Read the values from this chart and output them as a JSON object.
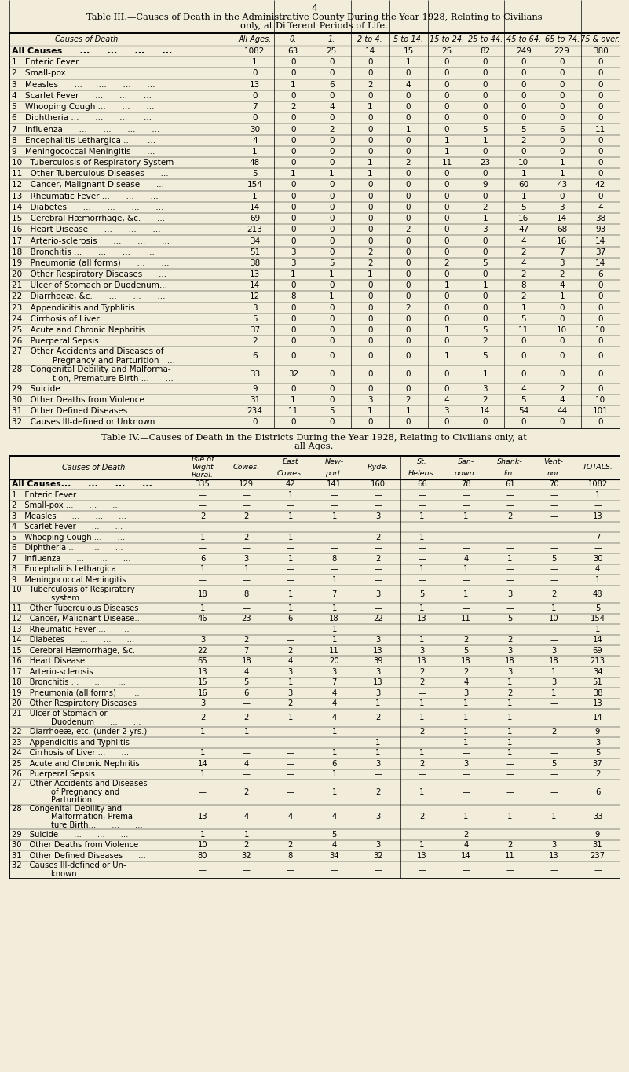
{
  "page_number": "4",
  "bg_color": "#f2edda",
  "table3_title_line1": "Table III.—Causes of Death in the Administrative County During the Year 1928, Relating to Civilians",
  "table3_title_line2": "only, at Different Periods of Life.",
  "table3_col_headers": [
    "Causes of Death.",
    "All Ages.",
    "0.",
    "1.",
    "2 to 4.",
    "5 to 14.",
    "15 to 24.",
    "25 to 44.",
    "45 to 64.",
    "65 to 74.",
    "75 & over."
  ],
  "table3_rows": [
    [
      "All Causes  ...  ...  ...  ...",
      "1082",
      "63",
      "25",
      "14",
      "15",
      "25",
      "82",
      "249",
      "229",
      "380",
      false
    ],
    [
      "1 Enteric Fever  ...  ...  ...",
      "1",
      "0",
      "0",
      "0",
      "1",
      "0",
      "0",
      "0",
      "0",
      "0",
      false
    ],
    [
      "2 Small-pox ...  ...  ...  ...",
      "0",
      "0",
      "0",
      "0",
      "0",
      "0",
      "0",
      "0",
      "0",
      "0",
      false
    ],
    [
      "3 Measles  ...  ...  ...  ...",
      "13",
      "1",
      "6",
      "2",
      "4",
      "0",
      "0",
      "0",
      "0",
      "0",
      false
    ],
    [
      "4 Scarlet Fever  ...  ...  ...",
      "0",
      "0",
      "0",
      "0",
      "0",
      "0",
      "0",
      "0",
      "0",
      "0",
      false
    ],
    [
      "5 Whooping Cough ...  ...  ...",
      "7",
      "2",
      "4",
      "1",
      "0",
      "0",
      "0",
      "0",
      "0",
      "0",
      false
    ],
    [
      "6 Diphtheria ...  ...  ...  ...",
      "0",
      "0",
      "0",
      "0",
      "0",
      "0",
      "0",
      "0",
      "0",
      "0",
      false
    ],
    [
      "7 Influenza  ...  ...  ...  ...",
      "30",
      "0",
      "2",
      "0",
      "1",
      "0",
      "5",
      "5",
      "6",
      "11",
      false
    ],
    [
      "8 Encephalitis Lethargica ...  ...",
      "4",
      "0",
      "0",
      "0",
      "0",
      "1",
      "1",
      "2",
      "0",
      "0",
      false
    ],
    [
      "9 Meningococcal Meningitis  ...",
      "1",
      "0",
      "0",
      "0",
      "0",
      "1",
      "0",
      "0",
      "0",
      "0",
      false
    ],
    [
      "10 Tuberculosis of Respiratory System",
      "48",
      "0",
      "0",
      "1",
      "2",
      "11",
      "23",
      "10",
      "1",
      "0",
      false
    ],
    [
      "11 Other Tuberculous Diseases  ...",
      "5",
      "1",
      "1",
      "1",
      "0",
      "0",
      "0",
      "1",
      "1",
      "0",
      false
    ],
    [
      "12 Cancer, Malignant Disease  ...",
      "154",
      "0",
      "0",
      "0",
      "0",
      "0",
      "9",
      "60",
      "43",
      "42",
      false
    ],
    [
      "13 Rheumatic Fever ...  ...  ...",
      "1",
      "0",
      "0",
      "0",
      "0",
      "0",
      "0",
      "1",
      "0",
      "0",
      false
    ],
    [
      "14 Diabetes  ...  ...  ...  ...",
      "14",
      "0",
      "0",
      "0",
      "0",
      "0",
      "2",
      "5",
      "3",
      "4",
      false
    ],
    [
      "15 Cerebral Hæmorrhage, &c.  ...",
      "69",
      "0",
      "0",
      "0",
      "0",
      "0",
      "1",
      "16",
      "14",
      "38",
      false
    ],
    [
      "16 Heart Disease  ...  ...  ...",
      "213",
      "0",
      "0",
      "0",
      "2",
      "0",
      "3",
      "47",
      "68",
      "93",
      false
    ],
    [
      "17 Arterio-sclerosis  ...  ...  ...",
      "34",
      "0",
      "0",
      "0",
      "0",
      "0",
      "0",
      "4",
      "16",
      "14",
      false
    ],
    [
      "18 Bronchitis ...  ...  ...  ...",
      "51",
      "3",
      "0",
      "2",
      "0",
      "0",
      "0",
      "2",
      "7",
      "37",
      false
    ],
    [
      "19 Pneumonia (all forms)  ...  ...",
      "38",
      "3",
      "5",
      "2",
      "0",
      "2",
      "5",
      "4",
      "3",
      "14",
      false
    ],
    [
      "20 Other Respiratory Diseases  ...",
      "13",
      "1",
      "1",
      "1",
      "0",
      "0",
      "0",
      "2",
      "2",
      "6",
      false
    ],
    [
      "21 Ulcer of Stomach or Duodenum...",
      "14",
      "0",
      "0",
      "0",
      "0",
      "1",
      "1",
      "8",
      "4",
      "0",
      false
    ],
    [
      "22 Diarrhoeæ, &c.  ...  ...  ...",
      "12",
      "8",
      "1",
      "0",
      "0",
      "0",
      "0",
      "2",
      "1",
      "0",
      false
    ],
    [
      "23 Appendicitis and Typhlitis  ...",
      "3",
      "0",
      "0",
      "0",
      "2",
      "0",
      "0",
      "1",
      "0",
      "0",
      false
    ],
    [
      "24 Cirrhosis of Liver ...  ...  ...",
      "5",
      "0",
      "0",
      "0",
      "0",
      "0",
      "0",
      "5",
      "0",
      "0",
      false
    ],
    [
      "25 Acute and Chronic Nephritis  ...",
      "37",
      "0",
      "0",
      "0",
      "0",
      "1",
      "5",
      "11",
      "10",
      "10",
      false
    ],
    [
      "26 Puerperal Sepsis ...  ...  ...",
      "2",
      "0",
      "0",
      "0",
      "0",
      "0",
      "2",
      "0",
      "0",
      "0",
      false
    ],
    [
      "27 Other Accidents and Diseases of\n     Pregnancy and Parturition ...",
      "6",
      "0",
      "0",
      "0",
      "0",
      "1",
      "5",
      "0",
      "0",
      "0",
      true
    ],
    [
      "28 Congenital Debility and Malforma-\n     tion, Premature Birth ...  ...",
      "33",
      "32",
      "0",
      "0",
      "0",
      "0",
      "1",
      "0",
      "0",
      "0",
      true
    ],
    [
      "29 Suicide  ...  ...  ...  ...",
      "9",
      "0",
      "0",
      "0",
      "0",
      "0",
      "3",
      "4",
      "2",
      "0",
      false
    ],
    [
      "30 Other Deaths from Violence  ...",
      "31",
      "1",
      "0",
      "3",
      "2",
      "4",
      "2",
      "5",
      "4",
      "10",
      false
    ],
    [
      "31 Other Defined Diseases ...  ...",
      "234",
      "11",
      "5",
      "1",
      "1",
      "3",
      "14",
      "54",
      "44",
      "101",
      false
    ],
    [
      "32 Causes Ill-defined or Unknown ...",
      "0",
      "0",
      "0",
      "0",
      "0",
      "0",
      "0",
      "0",
      "0",
      "0",
      false
    ]
  ],
  "table4_title_line1": "Table IV.—Causes of Death in the Districts During the Year 1928, Relating to Civilians only, at",
  "table4_title_line2": "all Ages.",
  "table4_col_headers": [
    "Causes of Death.",
    "Isle of\nWight\nRural.",
    "Cowes.",
    "East\nCowes.",
    "New-\nport.",
    "Ryde.",
    "St.\nHelens.",
    "San-\ndown.",
    "Shank-\nlin.",
    "Vent-\nnor.",
    "TOTALS."
  ],
  "table4_rows": [
    [
      "All Causes...  ...  ...  ...",
      "335",
      "129",
      "42",
      "141",
      "160",
      "66",
      "78",
      "61",
      "70",
      "1082",
      0
    ],
    [
      "1 Enteric Fever  ...  ...",
      "—",
      "—",
      "1",
      "—",
      "—",
      "—",
      "—",
      "—",
      "—",
      "1",
      0
    ],
    [
      "2 Small-pox ...  ...  ...",
      "—",
      "—",
      "—",
      "—",
      "—",
      "—",
      "—",
      "—",
      "—",
      "—",
      0
    ],
    [
      "3 Measles  ...  ...  ...",
      "2",
      "2",
      "1",
      "1",
      "3",
      "1",
      "1",
      "2",
      "—",
      "13",
      0
    ],
    [
      "4 Scarlet Fever  ...  ...",
      "—",
      "—",
      "—",
      "—",
      "—",
      "—",
      "—",
      "—",
      "—",
      "—",
      0
    ],
    [
      "5 Whooping Cough ...  ...",
      "1",
      "2",
      "1",
      "—",
      "2",
      "1",
      "—",
      "—",
      "—",
      "7",
      0
    ],
    [
      "6 Diphtheria ...  ...  ...",
      "—",
      "—",
      "—",
      "—",
      "—",
      "—",
      "—",
      "—",
      "—",
      "—",
      0
    ],
    [
      "7 Influenza  ...  ...  ...",
      "6",
      "3",
      "1",
      "8",
      "2",
      "—",
      "4",
      "1",
      "5",
      "30",
      0
    ],
    [
      "8 Encephalitis Lethargica ...",
      "1",
      "1",
      "—",
      "—",
      "—",
      "1",
      "1",
      "—",
      "—",
      "4",
      0
    ],
    [
      "9 Meningococcal Meningitis ...",
      "—",
      "—",
      "—",
      "1",
      "—",
      "—",
      "—",
      "—",
      "—",
      "1",
      0
    ],
    [
      "10 Tuberculosis of Respiratory\n     system  ...  ...  ...",
      "18",
      "8",
      "1",
      "7",
      "3",
      "5",
      "1",
      "3",
      "2",
      "48",
      1
    ],
    [
      "11 Other Tuberculous Diseases",
      "1",
      "—",
      "1",
      "1",
      "—",
      "1",
      "—",
      "—",
      "1",
      "5",
      0
    ],
    [
      "12 Cancer, Malignant Disease...",
      "46",
      "23",
      "6",
      "18",
      "22",
      "13",
      "11",
      "5",
      "10",
      "154",
      0
    ],
    [
      "13 Rheumatic Fever ...  ...",
      "—",
      "—",
      "—",
      "1",
      "—",
      "—",
      "—",
      "—",
      "—",
      "1",
      0
    ],
    [
      "14 Diabetes  ...  ...  ...",
      "3",
      "2",
      "—",
      "1",
      "3",
      "1",
      "2",
      "2",
      "—",
      "14",
      0
    ],
    [
      "15 Cerebral Hæmorrhage, &c.",
      "22",
      "7",
      "2",
      "11",
      "13",
      "3",
      "5",
      "3",
      "3",
      "69",
      0
    ],
    [
      "16 Heart Disease  ...  ...",
      "65",
      "18",
      "4",
      "20",
      "39",
      "13",
      "18",
      "18",
      "18",
      "213",
      0
    ],
    [
      "17 Arterio-sclerosis  ...  ...",
      "13",
      "4",
      "3",
      "3",
      "3",
      "2",
      "2",
      "3",
      "1",
      "34",
      0
    ],
    [
      "18 Bronchitis ...  ...  ...",
      "15",
      "5",
      "1",
      "7",
      "13",
      "2",
      "4",
      "1",
      "3",
      "51",
      0
    ],
    [
      "19 Pneumonia (all forms)  ...",
      "16",
      "6",
      "3",
      "4",
      "3",
      "—",
      "3",
      "2",
      "1",
      "38",
      0
    ],
    [
      "20 Other Respiratory Diseases",
      "3",
      "—",
      "2",
      "4",
      "1",
      "1",
      "1",
      "1",
      "—",
      "13",
      0
    ],
    [
      "21 Ulcer of Stomach or\n     Duodenum  ...  ...",
      "2",
      "2",
      "1",
      "4",
      "2",
      "1",
      "1",
      "1",
      "—",
      "14",
      1
    ],
    [
      "22 Diarrhoeæ, etc. (under 2 yrs.)",
      "1",
      "1",
      "—",
      "1",
      "—",
      "2",
      "1",
      "1",
      "2",
      "9",
      0
    ],
    [
      "23 Appendicitis and Typhlitis",
      "—",
      "—",
      "—",
      "—",
      "1",
      "—",
      "1",
      "1",
      "—",
      "3",
      0
    ],
    [
      "24 Cirrhosis of Liver ...  ...",
      "1",
      "—",
      "—",
      "1",
      "1",
      "1",
      "—",
      "1",
      "—",
      "5",
      0
    ],
    [
      "25 Acute and Chronic Nephritis",
      "14",
      "4",
      "—",
      "6",
      "3",
      "2",
      "3",
      "—",
      "5",
      "37",
      0
    ],
    [
      "26 Puerperal Sepsis  ...  ...",
      "1",
      "—",
      "—",
      "1",
      "—",
      "—",
      "—",
      "—",
      "—",
      "2",
      0
    ],
    [
      "27 Other Accidents and Diseases\n     of Pregnancy and\n     Parturition  ...  ...",
      "—",
      "2",
      "—",
      "1",
      "2",
      "1",
      "—",
      "—",
      "—",
      "6",
      2
    ],
    [
      "28 Congenital Debility and\n     Malformation, Prema-\n     ture Birth...  ...  ...",
      "13",
      "4",
      "4",
      "4",
      "3",
      "2",
      "1",
      "1",
      "1",
      "33",
      2
    ],
    [
      "29 Suicide  ...  ...  ...",
      "1",
      "1",
      "—",
      "5",
      "—",
      "—",
      "2",
      "—",
      "—",
      "9",
      0
    ],
    [
      "30 Other Deaths from Violence",
      "10",
      "2",
      "2",
      "4",
      "3",
      "1",
      "4",
      "2",
      "3",
      "31",
      0
    ],
    [
      "31 Other Defined Diseases  ...",
      "80",
      "32",
      "8",
      "34",
      "32",
      "13",
      "14",
      "11",
      "13",
      "237",
      0
    ],
    [
      "32 Causes Ill-defined or Un-\n     known  ...  ...  ...",
      "—",
      "—",
      "—",
      "—",
      "—",
      "—",
      "—",
      "—",
      "—",
      "—",
      1
    ]
  ]
}
